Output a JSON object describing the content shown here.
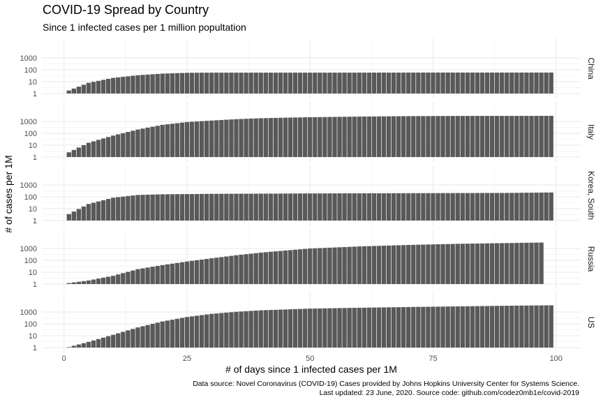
{
  "chart_data": {
    "type": "bar",
    "title": "COVID-19 Spread by Country",
    "subtitle": "Since 1 infected cases per 1 million popultation",
    "xlabel": "# of days since 1 infected cases per 1M",
    "ylabel": "# of cases per 1M",
    "caption": [
      "Data source: Novel Coronavirus (COVID-19) Cases provided by Johns Hopkins University Center for Systems Science.",
      "Last updated: 23 June, 2020. Source code: github.com/codez0mb1e/covid-2019"
    ],
    "y_scale": "log10",
    "ylim": [
      1,
      3000
    ],
    "y_ticks": [
      1,
      10,
      100,
      1000
    ],
    "y_tick_labels": [
      "1",
      "10",
      "100",
      "1000"
    ],
    "xlim": [
      -4.5,
      105
    ],
    "x_ticks": [
      0,
      25,
      50,
      75,
      100
    ],
    "x_tick_labels": [
      "0",
      "25",
      "50",
      "75",
      "100"
    ],
    "grid": true,
    "facets": [
      {
        "name": "China",
        "x_start": 1,
        "x_end": 99,
        "profile": [
          [
            1,
            1.8
          ],
          [
            5,
            8
          ],
          [
            10,
            21
          ],
          [
            15,
            35
          ],
          [
            20,
            48
          ],
          [
            25,
            56
          ],
          [
            30,
            58
          ],
          [
            50,
            58
          ],
          [
            75,
            59
          ],
          [
            99,
            59
          ]
        ]
      },
      {
        "name": "Italy",
        "x_start": 1,
        "x_end": 99,
        "profile": [
          [
            1,
            2.5
          ],
          [
            5,
            16
          ],
          [
            10,
            65
          ],
          [
            15,
            210
          ],
          [
            20,
            520
          ],
          [
            25,
            900
          ],
          [
            30,
            1200
          ],
          [
            35,
            1580
          ],
          [
            40,
            1900
          ],
          [
            45,
            2100
          ],
          [
            50,
            2300
          ],
          [
            60,
            2600
          ],
          [
            70,
            2850
          ],
          [
            80,
            2950
          ],
          [
            99,
            3000
          ]
        ]
      },
      {
        "name": "Korea, South",
        "x_start": 1,
        "x_end": 99,
        "profile": [
          [
            1,
            3.5
          ],
          [
            5,
            25
          ],
          [
            10,
            85
          ],
          [
            15,
            145
          ],
          [
            20,
            165
          ],
          [
            30,
            180
          ],
          [
            50,
            195
          ],
          [
            70,
            205
          ],
          [
            90,
            215
          ],
          [
            97,
            230
          ],
          [
            99,
            235
          ]
        ]
      },
      {
        "name": "Russia",
        "x_start": 1,
        "x_end": 97,
        "profile": [
          [
            1,
            1.2
          ],
          [
            5,
            2
          ],
          [
            10,
            5
          ],
          [
            15,
            18
          ],
          [
            20,
            40
          ],
          [
            25,
            80
          ],
          [
            30,
            150
          ],
          [
            35,
            270
          ],
          [
            40,
            450
          ],
          [
            45,
            680
          ],
          [
            50,
            1000
          ],
          [
            60,
            1500
          ],
          [
            70,
            2000
          ],
          [
            80,
            2500
          ],
          [
            90,
            2900
          ],
          [
            97,
            3200
          ]
        ]
      },
      {
        "name": "US",
        "x_start": 1,
        "x_end": 99,
        "profile": [
          [
            1,
            1.1
          ],
          [
            5,
            3
          ],
          [
            10,
            12
          ],
          [
            15,
            50
          ],
          [
            20,
            160
          ],
          [
            25,
            380
          ],
          [
            30,
            700
          ],
          [
            35,
            1050
          ],
          [
            40,
            1400
          ],
          [
            45,
            1650
          ],
          [
            50,
            1950
          ],
          [
            60,
            2300
          ],
          [
            70,
            2650
          ],
          [
            80,
            3000
          ],
          [
            90,
            3400
          ],
          [
            99,
            3700
          ]
        ]
      }
    ],
    "colors": {
      "bar": "#595959",
      "grid_major": "#ebebeb",
      "grid_minor": "#f5f5f5",
      "text": "#4d4d4d",
      "strip_text": "#1a1a1a"
    }
  }
}
